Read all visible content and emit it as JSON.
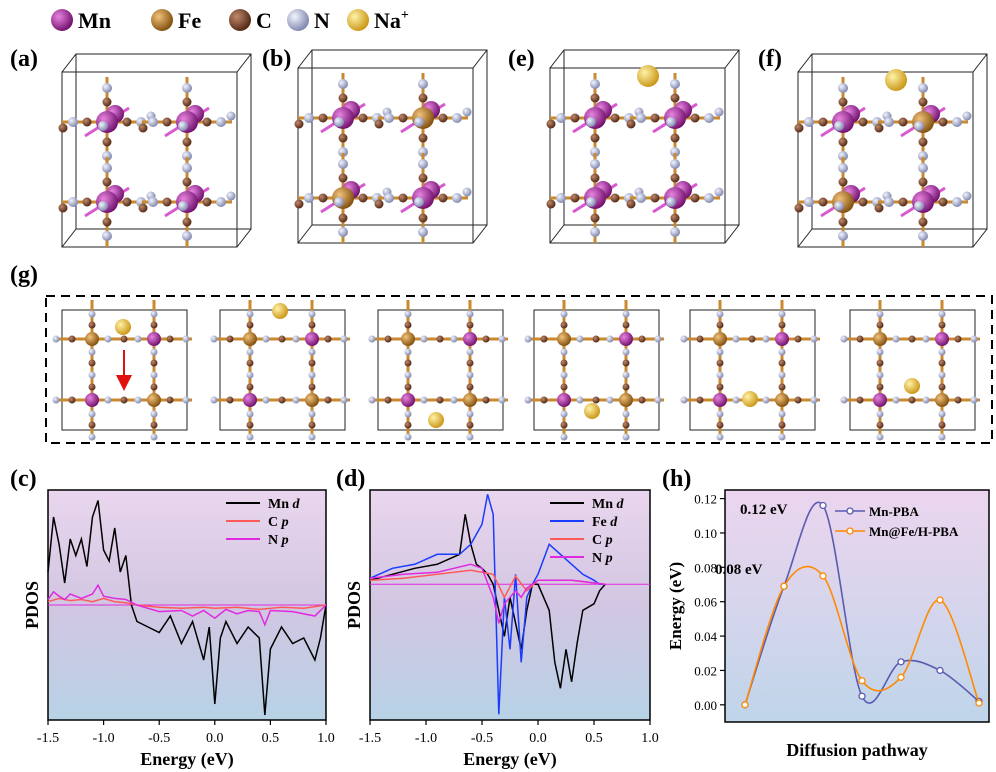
{
  "legend": {
    "elements": [
      {
        "symbol": "Mn",
        "superscript": "",
        "color": "#9b1b94"
      },
      {
        "symbol": "Fe",
        "superscript": "",
        "color": "#b8771c"
      },
      {
        "symbol": "C",
        "superscript": "",
        "color": "#7a4226"
      },
      {
        "symbol": "N",
        "superscript": "",
        "color": "#aeb4d4"
      },
      {
        "symbol": "Na",
        "superscript": "+",
        "color": "#f0c23a"
      }
    ]
  },
  "panels": {
    "a": "(a)",
    "b": "(b)",
    "e": "(e)",
    "f": "(f)",
    "g": "(g)",
    "c": "(c)",
    "d": "(d)",
    "h": "(h)"
  },
  "chart_data": [
    {
      "id": "c",
      "type": "line",
      "xlabel": "Energy (eV)",
      "ylabel": "PDOS",
      "xlim": [
        -1.5,
        1.0
      ],
      "xticks": [
        "-1.5",
        "-1.0",
        "-0.5",
        "0.0",
        "0.5",
        "1.0"
      ],
      "legend_position": "top-right",
      "series": [
        {
          "name": "Mn",
          "suffix": "d",
          "color": "#000000",
          "x": [
            -1.5,
            -1.45,
            -1.4,
            -1.35,
            -1.3,
            -1.25,
            -1.2,
            -1.15,
            -1.1,
            -1.05,
            -1.0,
            -0.95,
            -0.9,
            -0.85,
            -0.8,
            -0.75,
            -0.7,
            -0.6,
            -0.5,
            -0.4,
            -0.3,
            -0.2,
            -0.1,
            -0.05,
            0.0,
            0.05,
            0.1,
            0.2,
            0.3,
            0.4,
            0.45,
            0.5,
            0.6,
            0.7,
            0.8,
            0.9,
            0.95,
            1.0
          ],
          "y": [
            0.3,
            0.8,
            0.55,
            0.2,
            0.6,
            0.45,
            0.6,
            0.35,
            0.8,
            0.95,
            0.5,
            0.4,
            0.7,
            0.3,
            0.45,
            0.0,
            -0.15,
            -0.2,
            -0.25,
            -0.1,
            -0.35,
            -0.15,
            -0.5,
            -0.2,
            -0.9,
            -0.3,
            -0.15,
            -0.35,
            -0.2,
            -0.3,
            -1.0,
            -0.4,
            -0.2,
            -0.35,
            -0.3,
            -0.5,
            -0.3,
            0.0
          ]
        },
        {
          "name": "C",
          "suffix": "p",
          "color": "#ff5a5a",
          "x": [
            -1.5,
            -1.4,
            -1.3,
            -1.2,
            -1.1,
            -1.0,
            -0.9,
            -0.8,
            -0.7,
            -0.5,
            -0.3,
            -0.1,
            0.0,
            0.2,
            0.4,
            0.6,
            0.8,
            1.0
          ],
          "y": [
            0.03,
            0.06,
            0.04,
            0.05,
            0.03,
            0.06,
            0.03,
            0.02,
            0.0,
            -0.02,
            -0.03,
            -0.02,
            -0.03,
            -0.02,
            -0.04,
            -0.02,
            -0.03,
            0.0
          ]
        },
        {
          "name": "N",
          "suffix": "p",
          "color": "#e02ae0",
          "x": [
            -1.5,
            -1.45,
            -1.4,
            -1.35,
            -1.3,
            -1.2,
            -1.1,
            -1.05,
            -1.0,
            -0.9,
            -0.8,
            -0.7,
            -0.5,
            -0.3,
            -0.2,
            -0.1,
            0.0,
            0.1,
            0.2,
            0.3,
            0.4,
            0.45,
            0.5,
            0.7,
            0.9,
            1.0
          ],
          "y": [
            0.05,
            0.12,
            0.08,
            0.05,
            0.1,
            0.06,
            0.1,
            0.18,
            0.08,
            0.06,
            0.05,
            0.0,
            -0.06,
            -0.05,
            -0.1,
            -0.05,
            -0.12,
            -0.04,
            -0.08,
            -0.05,
            -0.06,
            -0.18,
            -0.05,
            -0.06,
            -0.1,
            0.0
          ]
        }
      ]
    },
    {
      "id": "d",
      "type": "line",
      "xlabel": "Energy (eV)",
      "ylabel": "PDOS",
      "xlim": [
        -1.5,
        1.0
      ],
      "xticks": [
        "-1.5",
        "-1.0",
        "-0.5",
        "0.0",
        "0.5",
        "1.0"
      ],
      "legend_position": "top-right",
      "series": [
        {
          "name": "Mn",
          "suffix": "d",
          "color": "#000000",
          "x": [
            -1.5,
            -1.3,
            -1.1,
            -0.9,
            -0.7,
            -0.65,
            -0.6,
            -0.55,
            -0.5,
            -0.45,
            -0.4,
            -0.35,
            -0.3,
            -0.25,
            -0.2,
            -0.15,
            -0.1,
            -0.05,
            0.0,
            0.1,
            0.15,
            0.2,
            0.25,
            0.3,
            0.35,
            0.4,
            0.5,
            0.55,
            0.6
          ],
          "y": [
            0.02,
            0.05,
            0.08,
            0.1,
            0.15,
            0.35,
            0.2,
            0.1,
            0.08,
            0.05,
            0.0,
            -0.2,
            -0.4,
            -0.1,
            -0.3,
            -0.5,
            -0.2,
            0.0,
            0.0,
            -0.2,
            -0.6,
            -0.8,
            -0.5,
            -0.75,
            -0.45,
            -0.2,
            -0.15,
            -0.05,
            0.0
          ]
        },
        {
          "name": "Fe",
          "suffix": "d",
          "color": "#1a3cff",
          "x": [
            -1.5,
            -1.3,
            -1.1,
            -0.9,
            -0.7,
            -0.6,
            -0.5,
            -0.45,
            -0.4,
            -0.35,
            -0.3,
            -0.25,
            -0.2,
            -0.15,
            -0.1,
            -0.05,
            0.0,
            0.1,
            0.2,
            0.3,
            0.4,
            0.5,
            0.55,
            0.6
          ],
          "y": [
            0.03,
            0.08,
            0.1,
            0.15,
            0.15,
            0.2,
            0.3,
            0.45,
            0.35,
            -1.0,
            -0.1,
            -0.5,
            0.05,
            -0.6,
            -0.1,
            0.0,
            0.05,
            0.2,
            0.15,
            0.1,
            0.05,
            0.02,
            0.0,
            0.0
          ]
        },
        {
          "name": "C",
          "suffix": "p",
          "color": "#ff5a5a",
          "x": [
            -1.5,
            -1.2,
            -0.9,
            -0.6,
            -0.4,
            -0.3,
            -0.2,
            -0.1,
            0.0,
            0.3,
            0.6
          ],
          "y": [
            0.02,
            0.03,
            0.05,
            0.07,
            0.05,
            -0.1,
            0.04,
            -0.05,
            0.02,
            0.02,
            0.0
          ]
        },
        {
          "name": "N",
          "suffix": "p",
          "color": "#e02ae0",
          "x": [
            -1.5,
            -1.2,
            -0.9,
            -0.6,
            -0.5,
            -0.4,
            -0.35,
            -0.3,
            -0.2,
            -0.15,
            -0.1,
            0.0,
            0.3,
            0.6
          ],
          "y": [
            0.03,
            0.05,
            0.06,
            0.1,
            0.08,
            -0.1,
            -0.3,
            -0.15,
            -0.05,
            -0.1,
            -0.03,
            0.02,
            0.02,
            0.0
          ]
        }
      ]
    },
    {
      "id": "h",
      "type": "line",
      "xlabel": "Diffusion pathway",
      "ylabel": "Energy (eV)",
      "ylim": [
        -0.01,
        0.125
      ],
      "yticks": [
        "0.00",
        "0.02",
        "0.04",
        "0.06",
        "0.08",
        "0.10",
        "0.12"
      ],
      "legend_position": "top-right",
      "annotations": [
        "0.12 eV",
        "0.08 eV"
      ],
      "series": [
        {
          "name": "Mn-PBA",
          "color": "#5b5bb0",
          "x": [
            0,
            1,
            2,
            3,
            4,
            5,
            6
          ],
          "y": [
            0.0,
            0.069,
            0.116,
            0.005,
            0.025,
            0.02,
            0.002
          ]
        },
        {
          "name": "Mn@Fe/H-PBA",
          "color": "#ff8a00",
          "x": [
            0,
            1,
            2,
            3,
            4,
            5,
            6
          ],
          "y": [
            0.0,
            0.069,
            0.075,
            0.014,
            0.016,
            0.061,
            0.001
          ]
        }
      ]
    }
  ]
}
